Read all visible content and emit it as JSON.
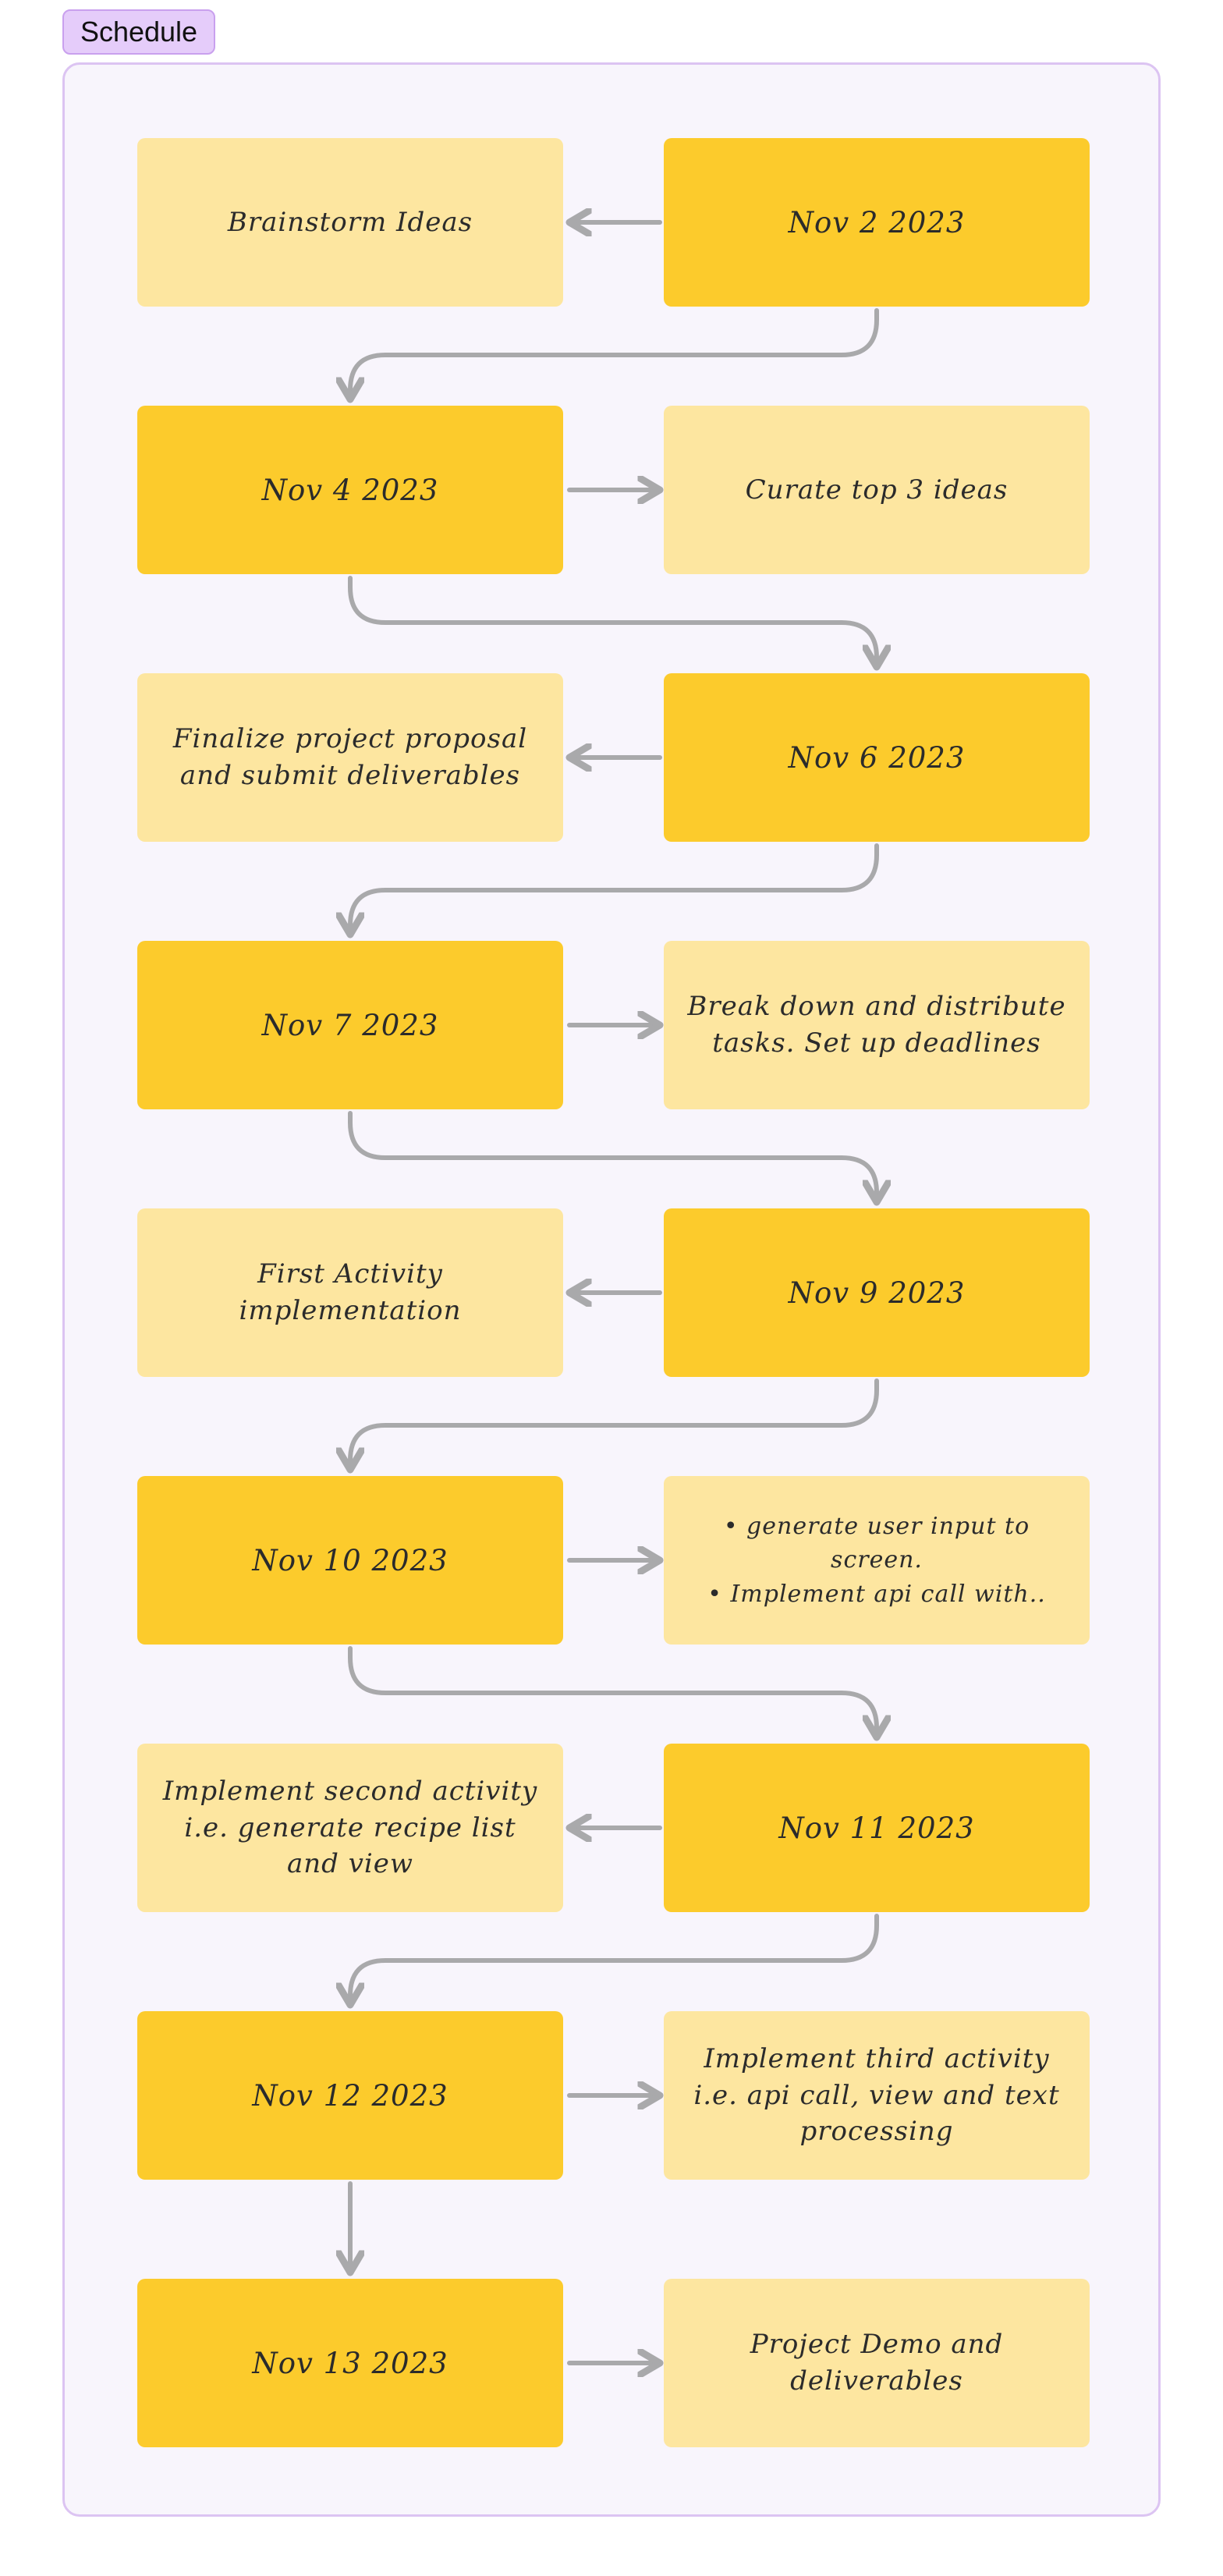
{
  "frame": {
    "title": "Schedule"
  },
  "rows": [
    {
      "date": "Nov 2 2023",
      "task": "Brainstorm Ideas"
    },
    {
      "date": "Nov 4 2023",
      "task": "Curate top 3 ideas"
    },
    {
      "date": "Nov 6 2023",
      "task": "Finalize project proposal and submit deliverables"
    },
    {
      "date": "Nov 7 2023",
      "task": "Break down and distribute tasks. Set up deadlines"
    },
    {
      "date": "Nov 9 2023",
      "task": "First Activity implementation"
    },
    {
      "date": "Nov 10 2023",
      "task_bullets": [
        "• generate user input to screen.",
        "• Implement api call with.."
      ]
    },
    {
      "date": "Nov 11 2023",
      "task": "Implement second activity i.e. generate recipe list and view"
    },
    {
      "date": "Nov 12 2023",
      "task": "Implement third activity i.e. api call, view and text processing"
    },
    {
      "date": "Nov 13 2023",
      "task": "Project Demo and deliverables"
    }
  ],
  "colors": {
    "date_fill": "#fccb2c",
    "task_fill": "#fde6a0",
    "frame_fill": "#f8f5fc",
    "frame_border": "#dcc4f2",
    "tag_fill": "#e5ccfa",
    "connector": "#a9a9ab"
  }
}
